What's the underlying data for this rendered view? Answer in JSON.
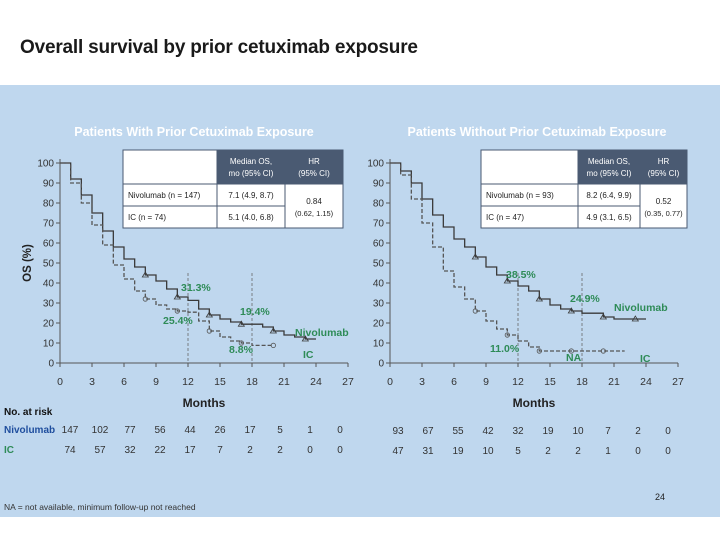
{
  "slide_title": "Overall survival by prior cetuximab exposure",
  "footnote": "NA = not available, minimum follow-up not reached",
  "page_number": "24",
  "colors": {
    "nivolumab": "#3a3a3a",
    "ic": "#555555",
    "accent": "#2e8b57",
    "header_bg": "#4a5a72",
    "title_blue": "#ffffff"
  },
  "chart_data": [
    {
      "type": "line",
      "title": "Patients With Prior Cetuximab Exposure",
      "xlabel": "Months",
      "ylabel": "OS (%)",
      "xlim": [
        0,
        27
      ],
      "ylim": [
        0,
        100
      ],
      "xticks": [
        0,
        3,
        6,
        9,
        12,
        15,
        18,
        21,
        24,
        27
      ],
      "yticks": [
        0,
        10,
        20,
        30,
        40,
        50,
        60,
        70,
        80,
        90,
        100
      ],
      "series": [
        {
          "name": "Nivolumab",
          "style": "solid",
          "x": [
            0,
            1,
            2,
            3,
            4,
            5,
            6,
            7,
            8,
            9,
            10,
            11,
            12,
            13,
            14,
            15,
            16,
            17,
            18,
            19,
            20,
            21,
            22,
            23,
            24
          ],
          "y": [
            100,
            92,
            84,
            75,
            66,
            58,
            52,
            48,
            44,
            41,
            37,
            33,
            31.3,
            27,
            24,
            22,
            20.5,
            19.4,
            19.4,
            18,
            16,
            14,
            13,
            12,
            12
          ]
        },
        {
          "name": "IC",
          "style": "dashed",
          "x": [
            0,
            1,
            2,
            3,
            4,
            5,
            6,
            7,
            8,
            9,
            10,
            11,
            12,
            13,
            14,
            15,
            16,
            17,
            18,
            19,
            20
          ],
          "y": [
            100,
            90,
            80,
            69,
            59,
            49,
            42,
            36,
            32,
            29,
            27,
            26,
            25.4,
            21,
            16,
            13,
            11,
            10,
            8.8,
            8.8,
            8.8
          ]
        }
      ],
      "annotations": [
        "31.3%",
        "25.4%",
        "19.4%",
        "8.8%",
        "Nivolumab",
        "IC"
      ],
      "table": {
        "headers": [
          "",
          "Median OS, mo (95% CI)",
          "HR (95% CI)"
        ],
        "rows": [
          [
            "Nivolumab (n = 147)",
            "7.1 (4.9, 8.7)"
          ],
          [
            "IC (n = 74)",
            "5.1 (4.0, 6.8)"
          ]
        ],
        "hr": "0.84",
        "hr_ci": "(0.62, 1.15)"
      },
      "at_risk": {
        "label": "No. at risk",
        "rows": [
          {
            "name": "Nivolumab",
            "values": [
              "147",
              "102",
              "77",
              "56",
              "44",
              "26",
              "17",
              "5",
              "1",
              "0"
            ]
          },
          {
            "name": "IC",
            "values": [
              "74",
              "57",
              "32",
              "22",
              "17",
              "7",
              "2",
              "2",
              "0",
              "0"
            ]
          }
        ]
      }
    },
    {
      "type": "line",
      "title": "Patients Without Prior Cetuximab Exposure",
      "xlabel": "Months",
      "ylabel": "",
      "xlim": [
        0,
        27
      ],
      "ylim": [
        0,
        100
      ],
      "xticks": [
        0,
        3,
        6,
        9,
        12,
        15,
        18,
        21,
        24,
        27
      ],
      "yticks": [
        0,
        10,
        20,
        30,
        40,
        50,
        60,
        70,
        80,
        90,
        100
      ],
      "series": [
        {
          "name": "Nivolumab",
          "style": "solid",
          "x": [
            0,
            1,
            2,
            3,
            4,
            5,
            6,
            7,
            8,
            9,
            10,
            11,
            12,
            13,
            14,
            15,
            16,
            17,
            18,
            19,
            20,
            21,
            22,
            23,
            24
          ],
          "y": [
            100,
            96,
            90,
            82,
            74,
            68,
            62,
            58,
            53,
            48,
            44,
            41,
            38.5,
            36,
            32,
            29,
            27,
            26,
            24.9,
            24.9,
            23,
            22,
            22,
            22,
            22
          ]
        },
        {
          "name": "IC",
          "style": "dashed",
          "x": [
            0,
            1,
            2,
            3,
            4,
            5,
            6,
            7,
            8,
            9,
            10,
            11,
            12,
            13,
            14,
            15,
            16,
            17,
            18,
            19,
            20,
            21,
            22
          ],
          "y": [
            100,
            94,
            82,
            70,
            58,
            46,
            38,
            32,
            26,
            21,
            17,
            14,
            11,
            8,
            6,
            6,
            6,
            6,
            6,
            6,
            6,
            6,
            6
          ]
        }
      ],
      "annotations": [
        "38.5%",
        "24.9%",
        "11.0%",
        "NA",
        "Nivolumab",
        "IC"
      ],
      "table": {
        "headers": [
          "",
          "Median OS, mo (95% CI)",
          "HR (95% CI)"
        ],
        "rows": [
          [
            "Nivolumab (n = 93)",
            "8.2 (6.4, 9.9)"
          ],
          [
            "IC (n = 47)",
            "4.9 (3.1, 6.5)"
          ]
        ],
        "hr": "0.52",
        "hr_ci": "(0.35, 0.77)"
      },
      "at_risk": {
        "label": "",
        "rows": [
          {
            "name": "Nivolumab",
            "values": [
              "93",
              "67",
              "55",
              "42",
              "32",
              "19",
              "10",
              "7",
              "2",
              "0"
            ]
          },
          {
            "name": "IC",
            "values": [
              "47",
              "31",
              "19",
              "10",
              "5",
              "2",
              "2",
              "1",
              "0",
              "0"
            ]
          }
        ]
      }
    }
  ]
}
